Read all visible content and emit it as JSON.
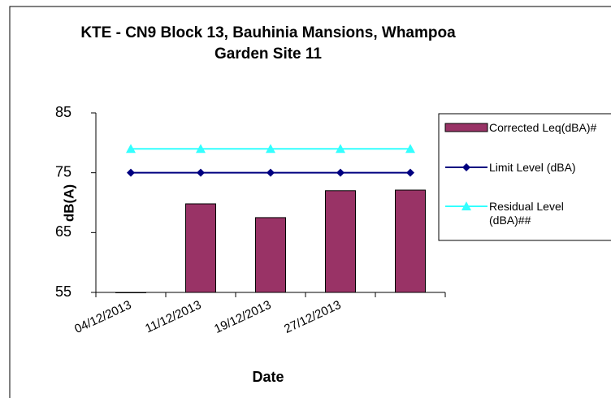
{
  "chart_data": {
    "type": "bar-line",
    "title": "KTE - CN9 Block 13, Bauhinia Mansions, Whampoa Garden Site 11",
    "x_label": "Date",
    "y_label": "dB(A)",
    "categories": [
      "04/12/2013",
      "11/12/2013",
      "19/12/2013",
      "27/12/2013",
      null
    ],
    "series": [
      {
        "name": "Corrected Leq(dBA)#",
        "kind": "bar",
        "color": "#993366",
        "values": [
          55,
          69.8,
          67.5,
          72,
          72.1
        ]
      },
      {
        "name": "Limit Level (dBA)",
        "kind": "line",
        "marker": "diamond",
        "color": "#000080",
        "values": [
          75,
          75,
          75,
          75,
          75
        ]
      },
      {
        "name": "Residual Level (dBA)##",
        "kind": "line",
        "marker": "triangle",
        "color": "#33ffff",
        "values": [
          79,
          79,
          79,
          79,
          79
        ]
      }
    ],
    "ylim": [
      55,
      85
    ],
    "yticks": [
      55,
      65,
      75,
      85
    ],
    "grid": false,
    "legend": "right"
  }
}
